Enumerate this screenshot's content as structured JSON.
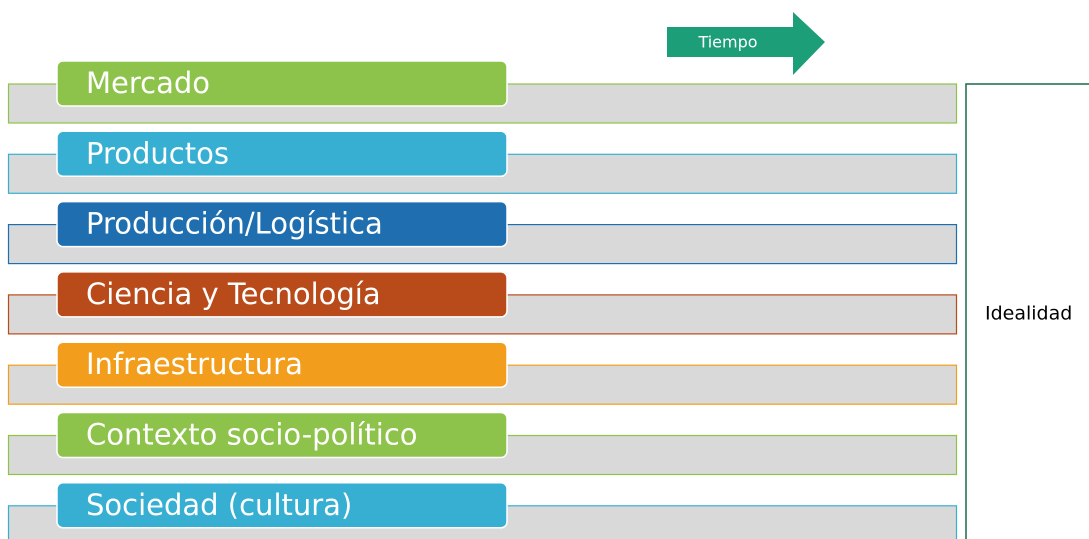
{
  "arrow": {
    "label": "Tiempo"
  },
  "rows": [
    {
      "label": "Mercado",
      "color": "#8dc34a"
    },
    {
      "label": "Productos",
      "color": "#36afd2"
    },
    {
      "label": "Producción/Logística",
      "color": "#1f6fb0"
    },
    {
      "label": "Ciencia y Tecnología",
      "color": "#b94a1a"
    },
    {
      "label": "Infraestructura",
      "color": "#f29e1c"
    },
    {
      "label": "Contexto socio-político",
      "color": "#8dc34a"
    },
    {
      "label": "Sociedad (cultura)",
      "color": "#36afd2"
    }
  ],
  "bracket": {
    "label": "Idealidad"
  }
}
